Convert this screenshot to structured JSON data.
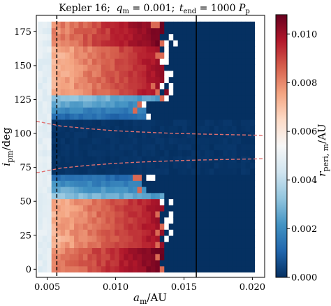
{
  "chart_data": {
    "type": "heatmap",
    "title": "Kepler 16; q_m = 0.001; t_end = 1000 P_p",
    "title_parts": {
      "system": "Kepler 16;",
      "q": "q",
      "q_sub": "m",
      "q_val": " = 0.001;",
      "t": "t",
      "t_sub": "end",
      "t_val": " = 1000 ",
      "P": "P",
      "P_sub": "p"
    },
    "xlabel": "a_m/AU",
    "xlabel_parts": {
      "a": "a",
      "sub": "m",
      "rest": "/AU"
    },
    "ylabel": "i_pm/deg",
    "ylabel_parts": {
      "i": "i",
      "sub": "pm",
      "rest": "/deg"
    },
    "colorbar_label": "r_peri,m/AU",
    "colorbar_parts": {
      "r": "r",
      "sub": "peri, m",
      "rest": "/AU"
    },
    "xlim": [
      0.0042,
      0.0209
    ],
    "ylim": [
      -6,
      187
    ],
    "xticks": [
      0.005,
      0.01,
      0.015,
      0.02
    ],
    "xtick_labels": [
      "0.005",
      "0.010",
      "0.015",
      "0.020"
    ],
    "yticks": [
      0,
      25,
      50,
      75,
      100,
      125,
      150,
      175
    ],
    "ytick_labels": [
      "0",
      "25",
      "50",
      "75",
      "100",
      "125",
      "150",
      "175"
    ],
    "colorbar_range": [
      0.0,
      0.0108
    ],
    "colorbar_ticks": [
      0.0,
      0.002,
      0.004,
      0.006,
      0.008,
      0.01
    ],
    "colorbar_tick_labels": [
      "0.000",
      "0.002",
      "0.004",
      "0.006",
      "0.008",
      "0.010"
    ],
    "colormap": "RdBu_r",
    "grid": {
      "x_start": 0.0045,
      "x_step": 0.00033,
      "nx": 48,
      "y_start": 0,
      "y_step": 4.5,
      "ny": 41
    },
    "vertical_lines": [
      {
        "x": 0.0057,
        "style": "dashed",
        "color": "#000000"
      },
      {
        "x": 0.0159,
        "style": "solid",
        "color": "#000000"
      }
    ],
    "boundary_curves": {
      "color": "#e07070",
      "upper": [
        [
          0.0042,
          109
        ],
        [
          0.006,
          105.5
        ],
        [
          0.008,
          103.5
        ],
        [
          0.01,
          102
        ],
        [
          0.012,
          101
        ],
        [
          0.014,
          100.2
        ],
        [
          0.016,
          99.6
        ],
        [
          0.018,
          99.2
        ],
        [
          0.0209,
          98.6
        ]
      ],
      "lower": [
        [
          0.0042,
          71
        ],
        [
          0.006,
          74.5
        ],
        [
          0.008,
          76.5
        ],
        [
          0.01,
          78
        ],
        [
          0.012,
          79
        ],
        [
          0.014,
          79.8
        ],
        [
          0.016,
          80.4
        ],
        [
          0.018,
          80.8
        ],
        [
          0.0209,
          81.4
        ]
      ]
    },
    "colors": {
      "low": "#053061",
      "mid": "#f7f7f7",
      "high": "#67001f",
      "nan": "#ffffff"
    }
  }
}
